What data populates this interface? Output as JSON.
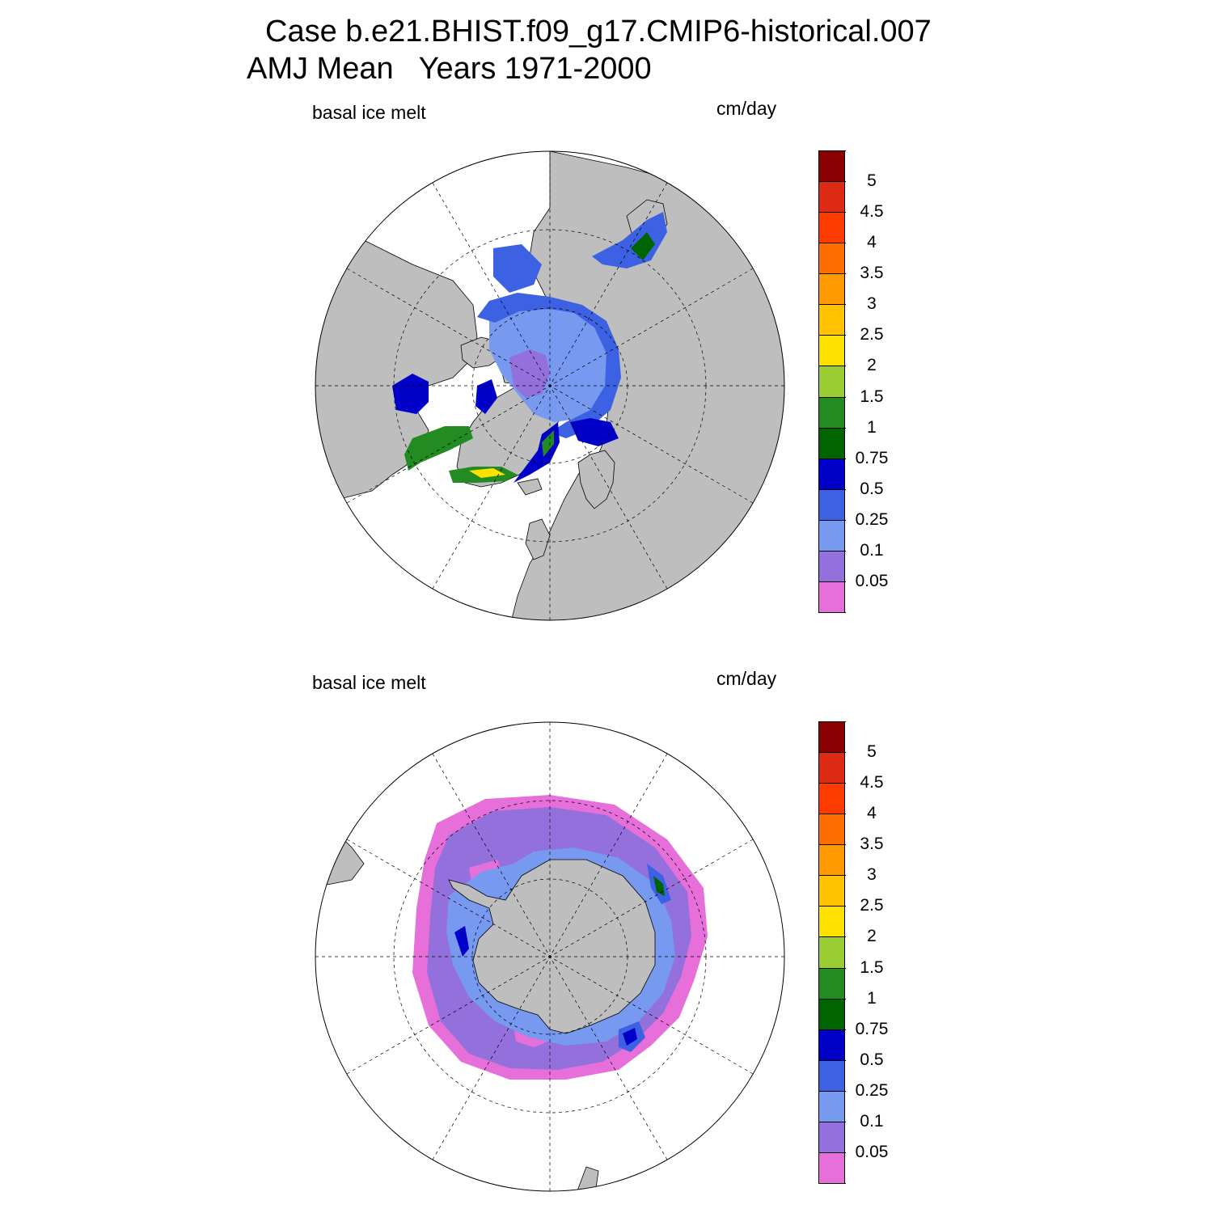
{
  "title": {
    "line1": "Case b.e21.BHIST.f09_g17.CMIP6-historical.007",
    "line2": "AMJ Mean   Years 1971-2000"
  },
  "panels": [
    {
      "id": "north",
      "left_label": "basal ice melt",
      "right_label": "cm/day"
    },
    {
      "id": "south",
      "left_label": "basal ice melt",
      "right_label": "cm/day"
    }
  ],
  "colorbar": {
    "levels": [
      "0.05",
      "0.1",
      "0.25",
      "0.5",
      "0.75",
      "1",
      "1.5",
      "2",
      "2.5",
      "3",
      "3.5",
      "4",
      "4.5",
      "5"
    ],
    "colors": [
      "#e66fd9",
      "#9370db",
      "#7799f0",
      "#3c61e3",
      "#0000c8",
      "#006400",
      "#228b22",
      "#9acd32",
      "#ffe100",
      "#ffc300",
      "#ff9b00",
      "#ff6e00",
      "#ff3c00",
      "#dc2a14",
      "#8b0000"
    ]
  },
  "map_colors": {
    "land": "#bebebe",
    "ocean": "#ffffff",
    "coast": "#000000"
  }
}
